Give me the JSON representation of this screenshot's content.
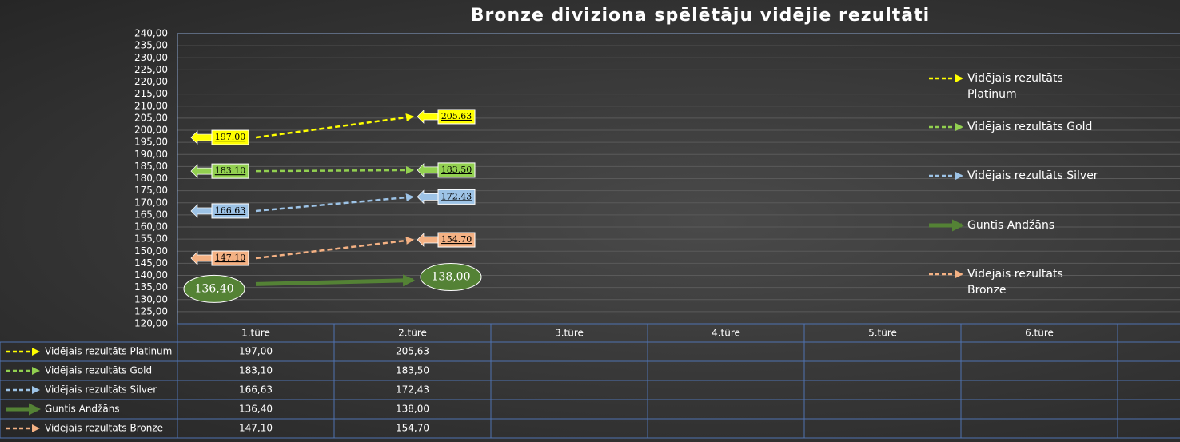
{
  "chart_data": {
    "type": "line",
    "title": "Bronze diviziona spēlētāju vidējie rezultāti",
    "categories": [
      "1.türe",
      "2.türe",
      "3.türe",
      "4.türe",
      "5.türe",
      "6.türe",
      null
    ],
    "ylim": [
      120,
      240
    ],
    "yticks": [
      {
        "value": 120,
        "label": "120,00"
      },
      {
        "value": 125,
        "label": "125,00"
      },
      {
        "value": 130,
        "label": "130,00"
      },
      {
        "value": 135,
        "label": "135,00"
      },
      {
        "value": 140,
        "label": "140,00"
      },
      {
        "value": 145,
        "label": "145,00"
      },
      {
        "value": 150,
        "label": "150,00"
      },
      {
        "value": 155,
        "label": "155,00"
      },
      {
        "value": 160,
        "label": "160,00"
      },
      {
        "value": 165,
        "label": "165,00"
      },
      {
        "value": 170,
        "label": "170,00"
      },
      {
        "value": 175,
        "label": "175,00"
      },
      {
        "value": 180,
        "label": "180,00"
      },
      {
        "value": 185,
        "label": "185,00"
      },
      {
        "value": 190,
        "label": "190,00"
      },
      {
        "value": 195,
        "label": "195,00"
      },
      {
        "value": 200,
        "label": "200,00"
      },
      {
        "value": 205,
        "label": "205,00"
      },
      {
        "value": 210,
        "label": "210,00"
      },
      {
        "value": 215,
        "label": "215,00"
      },
      {
        "value": 220,
        "label": "220,00"
      },
      {
        "value": 225,
        "label": "225,00"
      },
      {
        "value": 230,
        "label": "230,00"
      },
      {
        "value": 235,
        "label": "235,00"
      },
      {
        "value": 240,
        "label": "240,00"
      }
    ],
    "grid": true,
    "legend": "right",
    "series": [
      {
        "name": "Vidējais rezultāts Platinum",
        "color": "#ffff00",
        "dashed": true,
        "values": [
          197.0,
          205.63,
          null,
          null,
          null,
          null,
          null
        ],
        "value_labels": [
          "197.00",
          "205.63",
          null,
          null,
          null,
          null,
          null
        ],
        "table_labels": [
          "197,00",
          "205,63",
          null,
          null,
          null,
          null,
          null
        ]
      },
      {
        "name": "Vidējais rezultāts Gold",
        "color": "#92d050",
        "dashed": true,
        "values": [
          183.1,
          183.5,
          null,
          null,
          null,
          null,
          null
        ],
        "value_labels": [
          "183.10",
          "183.50",
          null,
          null,
          null,
          null,
          null
        ],
        "table_labels": [
          "183,10",
          "183,50",
          null,
          null,
          null,
          null,
          null
        ]
      },
      {
        "name": "Vidējais rezultāts Silver",
        "color": "#9dc3e6",
        "dashed": true,
        "values": [
          166.63,
          172.43,
          null,
          null,
          null,
          null,
          null
        ],
        "value_labels": [
          "166.63",
          "172.43",
          null,
          null,
          null,
          null,
          null
        ],
        "table_labels": [
          "166,63",
          "172,43",
          null,
          null,
          null,
          null,
          null
        ]
      },
      {
        "name": "Guntis Andžāns",
        "color": "#548235",
        "dashed": false,
        "values": [
          136.4,
          138.0,
          null,
          null,
          null,
          null,
          null
        ],
        "value_labels": [
          "136,40",
          "138,00",
          null,
          null,
          null,
          null,
          null
        ],
        "table_labels": [
          "136,40",
          "138,00",
          null,
          null,
          null,
          null,
          null
        ]
      },
      {
        "name": "Vidējais rezultāts Bronze",
        "color": "#f4b183",
        "dashed": true,
        "values": [
          147.1,
          154.7,
          null,
          null,
          null,
          null,
          null
        ],
        "value_labels": [
          "147.10",
          "154.70",
          null,
          null,
          null,
          null,
          null
        ],
        "table_labels": [
          "147,10",
          "154,70",
          null,
          null,
          null,
          null,
          null
        ]
      }
    ]
  }
}
